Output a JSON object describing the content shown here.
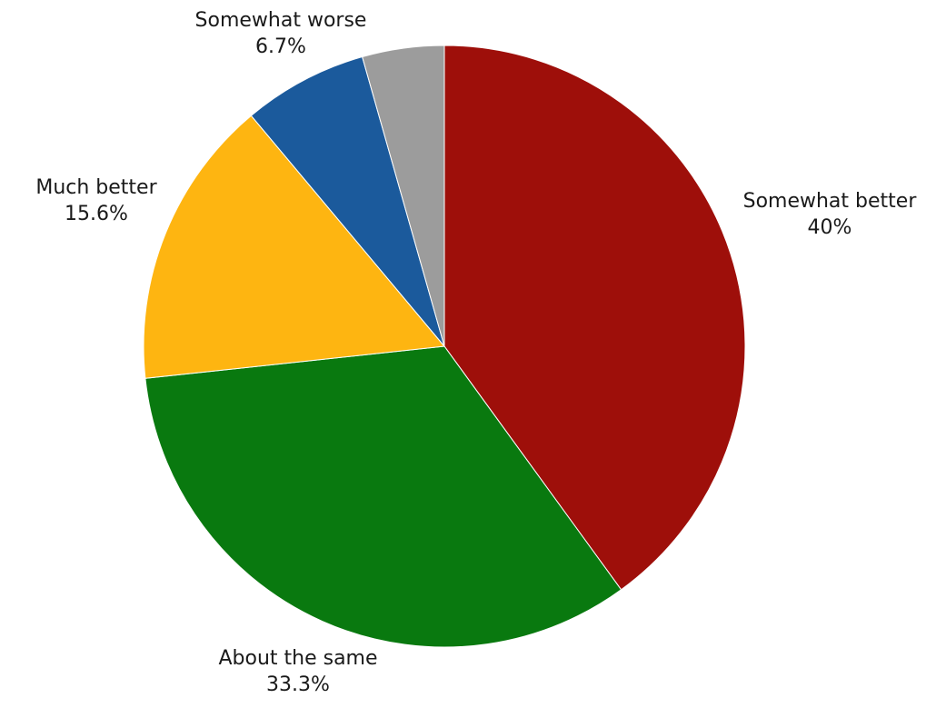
{
  "chart_data": {
    "type": "pie",
    "title": "",
    "start": "12 o'clock",
    "direction": "clockwise",
    "legend": "none",
    "slices": [
      {
        "label": "Somewhat better",
        "value": 40,
        "value_label": "40%",
        "color": "#9e0f0a"
      },
      {
        "label": "About the same",
        "value": 33.3,
        "value_label": "33.3%",
        "color": "#09790f"
      },
      {
        "label": "Much better",
        "value": 15.6,
        "value_label": "15.6%",
        "color": "#feb511"
      },
      {
        "label": "Somewhat worse",
        "value": 6.7,
        "value_label": "6.7%",
        "color": "#1b5a9c"
      },
      {
        "label": "",
        "value": 4.4,
        "value_label": "",
        "color": "#9c9c9c"
      }
    ]
  }
}
